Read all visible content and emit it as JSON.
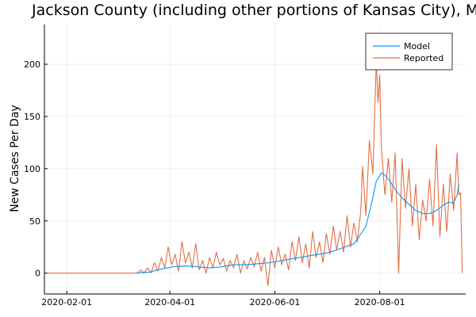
{
  "chart_data": {
    "type": "line",
    "title": "Jackson County (including other portions of Kansas City), MO",
    "xlabel": "",
    "ylabel": "New Cases Per Day",
    "x_ticks": [
      "2020-02-01",
      "2020-04-01",
      "2020-06-01",
      "2020-08-01"
    ],
    "y_ticks": [
      0,
      50,
      100,
      150,
      200
    ],
    "xlim": [
      "2020-01-19",
      "2020-09-20"
    ],
    "ylim": [
      -20,
      238
    ],
    "grid": true,
    "legend_position": "top-right",
    "colors": {
      "model": "#009AFA",
      "reported": "#E26F46"
    },
    "series": [
      {
        "name": "Model",
        "points": [
          [
            "2020-03-12",
            0
          ],
          [
            "2020-03-20",
            1
          ],
          [
            "2020-03-27",
            4
          ],
          [
            "2020-04-03",
            6
          ],
          [
            "2020-04-10",
            7
          ],
          [
            "2020-04-17",
            6
          ],
          [
            "2020-04-24",
            5
          ],
          [
            "2020-05-01",
            6
          ],
          [
            "2020-05-08",
            8
          ],
          [
            "2020-05-15",
            8
          ],
          [
            "2020-05-22",
            9
          ],
          [
            "2020-05-29",
            10
          ],
          [
            "2020-06-05",
            12
          ],
          [
            "2020-06-12",
            14
          ],
          [
            "2020-06-19",
            16
          ],
          [
            "2020-06-26",
            18
          ],
          [
            "2020-07-03",
            20
          ],
          [
            "2020-07-10",
            24
          ],
          [
            "2020-07-17",
            28
          ],
          [
            "2020-07-20",
            35
          ],
          [
            "2020-07-24",
            45
          ],
          [
            "2020-07-27",
            65
          ],
          [
            "2020-07-30",
            88
          ],
          [
            "2020-08-02",
            96
          ],
          [
            "2020-08-04",
            94
          ],
          [
            "2020-08-07",
            88
          ],
          [
            "2020-08-10",
            80
          ],
          [
            "2020-08-14",
            72
          ],
          [
            "2020-08-18",
            66
          ],
          [
            "2020-08-22",
            60
          ],
          [
            "2020-08-26",
            57
          ],
          [
            "2020-08-30",
            57
          ],
          [
            "2020-09-03",
            60
          ],
          [
            "2020-09-07",
            65
          ],
          [
            "2020-09-10",
            68
          ],
          [
            "2020-09-13",
            67
          ],
          [
            "2020-09-15",
            75
          ],
          [
            "2020-09-16",
            85
          ]
        ]
      },
      {
        "name": "Reported",
        "points": [
          [
            "2020-01-21",
            0
          ],
          [
            "2020-03-10",
            0
          ],
          [
            "2020-03-13",
            0
          ],
          [
            "2020-03-15",
            3
          ],
          [
            "2020-03-17",
            0
          ],
          [
            "2020-03-19",
            5
          ],
          [
            "2020-03-21",
            0
          ],
          [
            "2020-03-23",
            10
          ],
          [
            "2020-03-25",
            2
          ],
          [
            "2020-03-27",
            15
          ],
          [
            "2020-03-29",
            5
          ],
          [
            "2020-03-31",
            25
          ],
          [
            "2020-04-02",
            8
          ],
          [
            "2020-04-04",
            18
          ],
          [
            "2020-04-06",
            2
          ],
          [
            "2020-04-08",
            30
          ],
          [
            "2020-04-10",
            10
          ],
          [
            "2020-04-12",
            20
          ],
          [
            "2020-04-14",
            5
          ],
          [
            "2020-04-16",
            28
          ],
          [
            "2020-04-18",
            3
          ],
          [
            "2020-04-20",
            12
          ],
          [
            "2020-04-22",
            0
          ],
          [
            "2020-04-24",
            15
          ],
          [
            "2020-04-26",
            5
          ],
          [
            "2020-04-28",
            20
          ],
          [
            "2020-04-30",
            8
          ],
          [
            "2020-05-02",
            14
          ],
          [
            "2020-05-04",
            2
          ],
          [
            "2020-05-06",
            12
          ],
          [
            "2020-05-08",
            5
          ],
          [
            "2020-05-10",
            18
          ],
          [
            "2020-05-12",
            0
          ],
          [
            "2020-05-14",
            12
          ],
          [
            "2020-05-16",
            4
          ],
          [
            "2020-05-18",
            15
          ],
          [
            "2020-05-20",
            6
          ],
          [
            "2020-05-22",
            20
          ],
          [
            "2020-05-24",
            2
          ],
          [
            "2020-05-26",
            15
          ],
          [
            "2020-05-28",
            -12
          ],
          [
            "2020-05-30",
            22
          ],
          [
            "2020-06-01",
            5
          ],
          [
            "2020-06-03",
            25
          ],
          [
            "2020-06-05",
            8
          ],
          [
            "2020-06-07",
            18
          ],
          [
            "2020-06-09",
            3
          ],
          [
            "2020-06-11",
            30
          ],
          [
            "2020-06-13",
            12
          ],
          [
            "2020-06-15",
            35
          ],
          [
            "2020-06-17",
            10
          ],
          [
            "2020-06-19",
            28
          ],
          [
            "2020-06-21",
            5
          ],
          [
            "2020-06-23",
            40
          ],
          [
            "2020-06-25",
            15
          ],
          [
            "2020-06-27",
            30
          ],
          [
            "2020-06-29",
            10
          ],
          [
            "2020-07-01",
            38
          ],
          [
            "2020-07-03",
            18
          ],
          [
            "2020-07-05",
            45
          ],
          [
            "2020-07-07",
            22
          ],
          [
            "2020-07-09",
            40
          ],
          [
            "2020-07-11",
            20
          ],
          [
            "2020-07-13",
            55
          ],
          [
            "2020-07-15",
            25
          ],
          [
            "2020-07-17",
            48
          ],
          [
            "2020-07-19",
            30
          ],
          [
            "2020-07-21",
            60
          ],
          [
            "2020-07-22",
            102
          ],
          [
            "2020-07-24",
            55
          ],
          [
            "2020-07-26",
            127
          ],
          [
            "2020-07-28",
            95
          ],
          [
            "2020-07-30",
            203
          ],
          [
            "2020-07-31",
            163
          ],
          [
            "2020-08-01",
            190
          ],
          [
            "2020-08-02",
            120
          ],
          [
            "2020-08-04",
            75
          ],
          [
            "2020-08-06",
            110
          ],
          [
            "2020-08-08",
            68
          ],
          [
            "2020-08-10",
            115
          ],
          [
            "2020-08-12",
            0
          ],
          [
            "2020-08-14",
            110
          ],
          [
            "2020-08-16",
            62
          ],
          [
            "2020-08-18",
            100
          ],
          [
            "2020-08-20",
            45
          ],
          [
            "2020-08-22",
            85
          ],
          [
            "2020-08-24",
            32
          ],
          [
            "2020-08-26",
            70
          ],
          [
            "2020-08-28",
            50
          ],
          [
            "2020-08-30",
            90
          ],
          [
            "2020-09-01",
            45
          ],
          [
            "2020-09-03",
            123
          ],
          [
            "2020-09-05",
            35
          ],
          [
            "2020-09-07",
            85
          ],
          [
            "2020-09-09",
            40
          ],
          [
            "2020-09-11",
            95
          ],
          [
            "2020-09-13",
            60
          ],
          [
            "2020-09-15",
            115
          ],
          [
            "2020-09-16",
            75
          ],
          [
            "2020-09-17",
            77
          ],
          [
            "2020-09-18",
            0
          ]
        ]
      }
    ]
  }
}
